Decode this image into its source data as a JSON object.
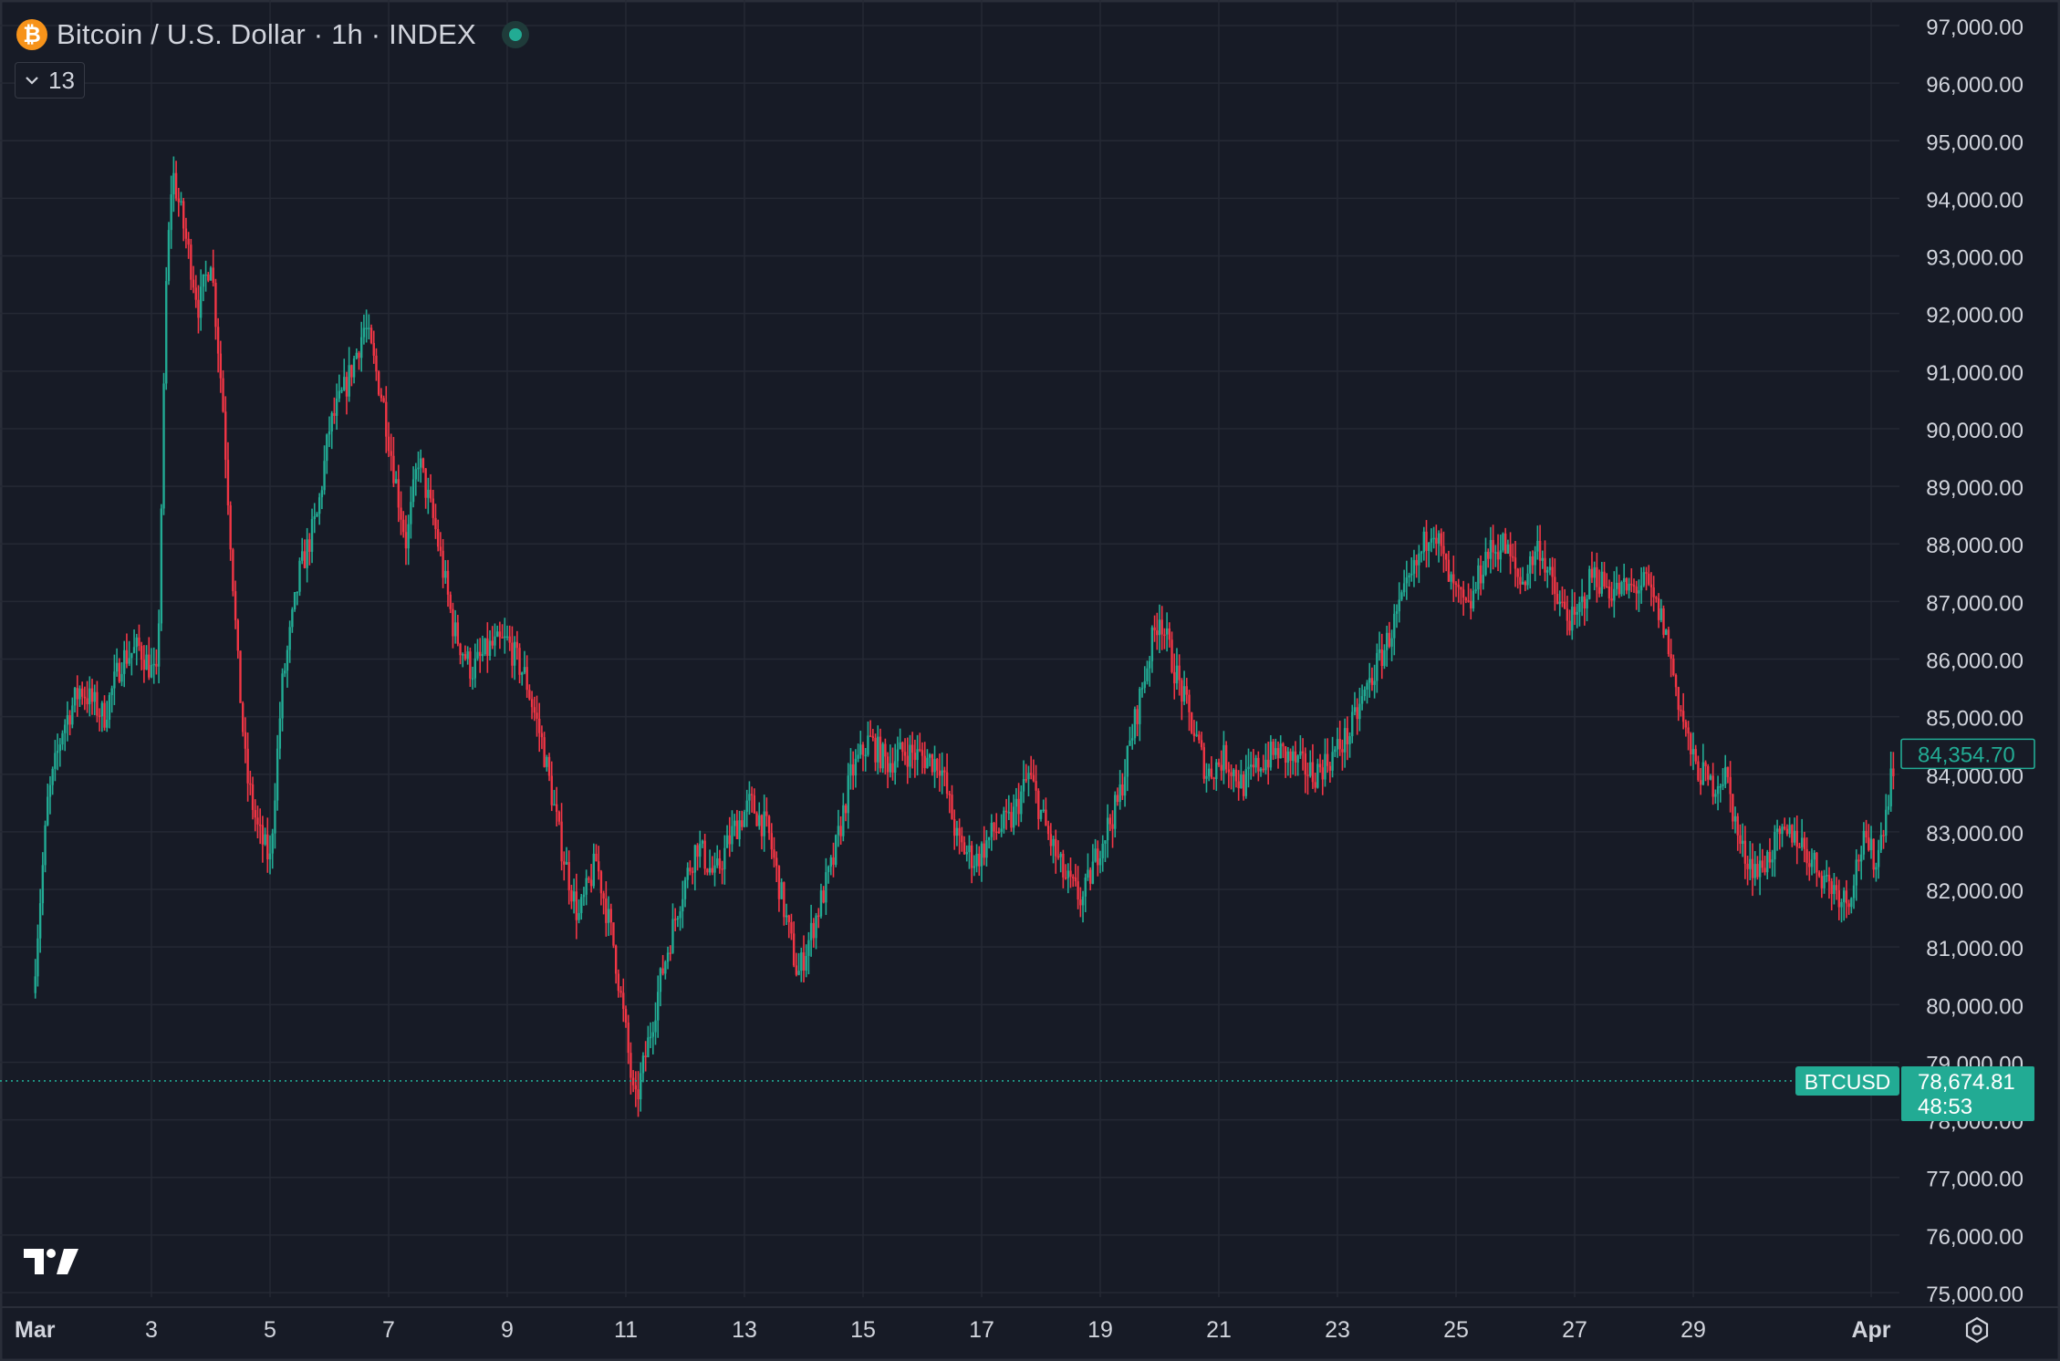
{
  "legend": {
    "coin_glyph": "₿",
    "title": "Bitcoin / U.S. Dollar · 1h · INDEX",
    "status_color": "#22ab94"
  },
  "indicators_toggle": {
    "label": "13",
    "icon": "chevron-down-icon"
  },
  "colors": {
    "background": "#171b26",
    "grid": "#252934",
    "up": "#22ab94",
    "down": "#f23645",
    "text": "#d1d4dc"
  },
  "chart_data": {
    "type": "candlestick",
    "title": "Bitcoin / U.S. Dollar · 1h · INDEX",
    "symbol": "BTCUSD",
    "interval": "1h",
    "x_range": [
      "Mar 1",
      "Apr 1"
    ],
    "ylim": [
      74700,
      97400
    ],
    "y_ticks": [
      75000,
      76000,
      77000,
      78000,
      79000,
      80000,
      81000,
      82000,
      83000,
      84000,
      85000,
      86000,
      87000,
      88000,
      89000,
      90000,
      91000,
      92000,
      93000,
      94000,
      95000,
      96000,
      97000
    ],
    "y_tick_labels": [
      "75,000.00",
      "76,000.00",
      "77,000.00",
      "78,000.00",
      "79,000.00",
      "80,000.00",
      "81,000.00",
      "82,000.00",
      "83,000.00",
      "84,000.00",
      "85,000.00",
      "86,000.00",
      "87,000.00",
      "88,000.00",
      "89,000.00",
      "90,000.00",
      "91,000.00",
      "92,000.00",
      "93,000.00",
      "94,000.00",
      "95,000.00",
      "96,000.00",
      "97,000.00"
    ],
    "x_tick_labels": [
      "Mar",
      "3",
      "5",
      "7",
      "9",
      "11",
      "13",
      "15",
      "17",
      "19",
      "21",
      "23",
      "25",
      "27",
      "29",
      "Apr"
    ],
    "x_tick_days": [
      0,
      2,
      4,
      6,
      8,
      10,
      12,
      14,
      16,
      18,
      20,
      22,
      24,
      26,
      28,
      31
    ],
    "close_path": [
      {
        "day": 0.0,
        "close": 80200
      },
      {
        "day": 0.25,
        "close": 83500
      },
      {
        "day": 0.5,
        "close": 84800
      },
      {
        "day": 0.8,
        "close": 85500
      },
      {
        "day": 1.2,
        "close": 85000
      },
      {
        "day": 1.5,
        "close": 86000
      },
      {
        "day": 1.8,
        "close": 86200
      },
      {
        "day": 2.1,
        "close": 85600
      },
      {
        "day": 2.25,
        "close": 92500
      },
      {
        "day": 2.35,
        "close": 94500
      },
      {
        "day": 2.6,
        "close": 93200
      },
      {
        "day": 2.8,
        "close": 92100
      },
      {
        "day": 3.0,
        "close": 93000
      },
      {
        "day": 3.2,
        "close": 90500
      },
      {
        "day": 3.45,
        "close": 86000
      },
      {
        "day": 3.6,
        "close": 84000
      },
      {
        "day": 3.8,
        "close": 83000
      },
      {
        "day": 4.0,
        "close": 82500
      },
      {
        "day": 4.2,
        "close": 85500
      },
      {
        "day": 4.5,
        "close": 87500
      },
      {
        "day": 4.8,
        "close": 88500
      },
      {
        "day": 5.0,
        "close": 90000
      },
      {
        "day": 5.3,
        "close": 90800
      },
      {
        "day": 5.6,
        "close": 91800
      },
      {
        "day": 5.9,
        "close": 90500
      },
      {
        "day": 6.1,
        "close": 89200
      },
      {
        "day": 6.3,
        "close": 88000
      },
      {
        "day": 6.5,
        "close": 89500
      },
      {
        "day": 6.8,
        "close": 88200
      },
      {
        "day": 7.1,
        "close": 86500
      },
      {
        "day": 7.4,
        "close": 85800
      },
      {
        "day": 7.7,
        "close": 86200
      },
      {
        "day": 8.0,
        "close": 86300
      },
      {
        "day": 8.3,
        "close": 85700
      },
      {
        "day": 8.6,
        "close": 84500
      },
      {
        "day": 8.9,
        "close": 82800
      },
      {
        "day": 9.2,
        "close": 81500
      },
      {
        "day": 9.5,
        "close": 82500
      },
      {
        "day": 9.8,
        "close": 81000
      },
      {
        "day": 10.0,
        "close": 79500
      },
      {
        "day": 10.15,
        "close": 78200
      },
      {
        "day": 10.35,
        "close": 79200
      },
      {
        "day": 10.6,
        "close": 80500
      },
      {
        "day": 10.9,
        "close": 81800
      },
      {
        "day": 11.2,
        "close": 82800
      },
      {
        "day": 11.5,
        "close": 82200
      },
      {
        "day": 11.8,
        "close": 83000
      },
      {
        "day": 12.1,
        "close": 83500
      },
      {
        "day": 12.4,
        "close": 83000
      },
      {
        "day": 12.7,
        "close": 81500
      },
      {
        "day": 12.9,
        "close": 80500
      },
      {
        "day": 13.2,
        "close": 81500
      },
      {
        "day": 13.5,
        "close": 82500
      },
      {
        "day": 13.8,
        "close": 84000
      },
      {
        "day": 14.1,
        "close": 84600
      },
      {
        "day": 14.4,
        "close": 84200
      },
      {
        "day": 14.7,
        "close": 84400
      },
      {
        "day": 15.0,
        "close": 84300
      },
      {
        "day": 15.3,
        "close": 84200
      },
      {
        "day": 15.6,
        "close": 82800
      },
      {
        "day": 15.9,
        "close": 82500
      },
      {
        "day": 16.2,
        "close": 83000
      },
      {
        "day": 16.5,
        "close": 83200
      },
      {
        "day": 16.8,
        "close": 84000
      },
      {
        "day": 17.1,
        "close": 83000
      },
      {
        "day": 17.4,
        "close": 82200
      },
      {
        "day": 17.7,
        "close": 81800
      },
      {
        "day": 18.0,
        "close": 82800
      },
      {
        "day": 18.3,
        "close": 83500
      },
      {
        "day": 18.6,
        "close": 85000
      },
      {
        "day": 18.85,
        "close": 86200
      },
      {
        "day": 19.0,
        "close": 86800
      },
      {
        "day": 19.2,
        "close": 86000
      },
      {
        "day": 19.5,
        "close": 85000
      },
      {
        "day": 19.8,
        "close": 84000
      },
      {
        "day": 20.1,
        "close": 84300
      },
      {
        "day": 20.4,
        "close": 83800
      },
      {
        "day": 20.7,
        "close": 84200
      },
      {
        "day": 21.0,
        "close": 84400
      },
      {
        "day": 21.3,
        "close": 84200
      },
      {
        "day": 21.6,
        "close": 84000
      },
      {
        "day": 21.9,
        "close": 84300
      },
      {
        "day": 22.2,
        "close": 84700
      },
      {
        "day": 22.5,
        "close": 85500
      },
      {
        "day": 22.8,
        "close": 86200
      },
      {
        "day": 23.1,
        "close": 87000
      },
      {
        "day": 23.4,
        "close": 87800
      },
      {
        "day": 23.6,
        "close": 88400
      },
      {
        "day": 23.9,
        "close": 87300
      },
      {
        "day": 24.2,
        "close": 86800
      },
      {
        "day": 24.5,
        "close": 87800
      },
      {
        "day": 24.8,
        "close": 88000
      },
      {
        "day": 25.1,
        "close": 87300
      },
      {
        "day": 25.4,
        "close": 88000
      },
      {
        "day": 25.7,
        "close": 87000
      },
      {
        "day": 26.0,
        "close": 86600
      },
      {
        "day": 26.3,
        "close": 87500
      },
      {
        "day": 26.6,
        "close": 87200
      },
      {
        "day": 26.9,
        "close": 87200
      },
      {
        "day": 27.2,
        "close": 87300
      },
      {
        "day": 27.5,
        "close": 86600
      },
      {
        "day": 27.75,
        "close": 85300
      },
      {
        "day": 28.0,
        "close": 84200
      },
      {
        "day": 28.3,
        "close": 83800
      },
      {
        "day": 28.55,
        "close": 84000
      },
      {
        "day": 28.8,
        "close": 82700
      },
      {
        "day": 29.1,
        "close": 82300
      },
      {
        "day": 29.4,
        "close": 82800
      },
      {
        "day": 29.7,
        "close": 83000
      },
      {
        "day": 30.0,
        "close": 82500
      },
      {
        "day": 30.3,
        "close": 82100
      },
      {
        "day": 30.6,
        "close": 81800
      },
      {
        "day": 30.85,
        "close": 82800
      },
      {
        "day": 31.1,
        "close": 82500
      },
      {
        "day": 31.4,
        "close": 84354.7
      }
    ],
    "last_close": 84354.7,
    "last_close_label": "84,354.70",
    "current_price": 78674.81,
    "current_price_label": "78,674.81",
    "countdown": "48:53",
    "price_line_label": "BTCUSD",
    "grid": true
  },
  "footer": {
    "settings_icon": "gear-icon"
  },
  "branding": {
    "logo": "tradingview-logo",
    "text": "TV"
  }
}
